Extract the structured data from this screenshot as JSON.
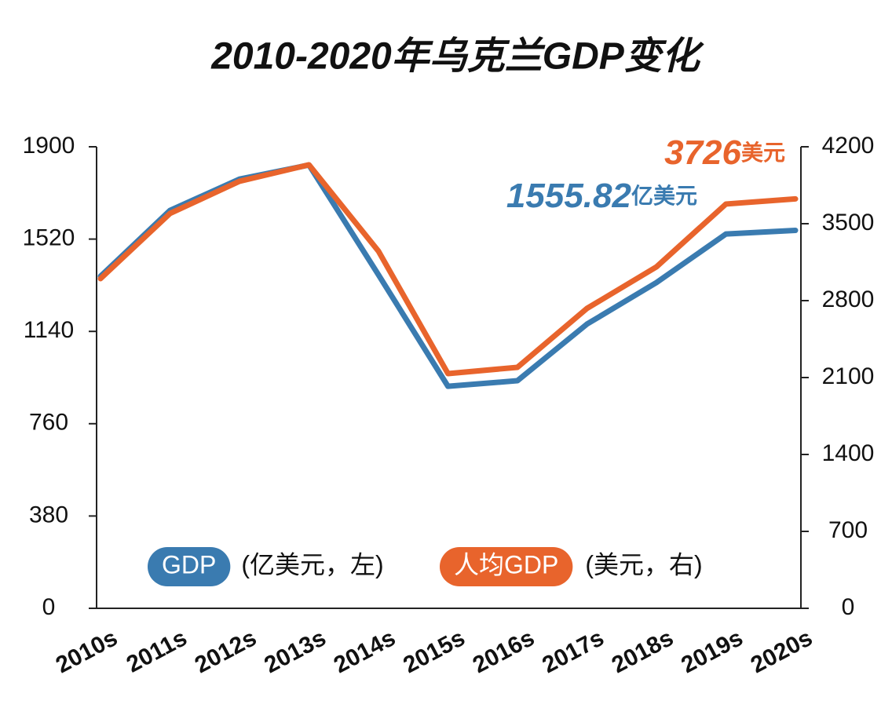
{
  "chart_data": {
    "type": "line",
    "title": "2010-2020年乌克兰GDP变化",
    "categories": [
      "2010s",
      "2011s",
      "2012s",
      "2013s",
      "2014s",
      "2015s",
      "2016s",
      "2017s",
      "2018s",
      "2019s",
      "2020s"
    ],
    "series": [
      {
        "name": "GDP",
        "unit_label": "(亿美元，左)",
        "color": "#3a7bb0",
        "values": [
          1367,
          1638,
          1767,
          1825,
          1373,
          914,
          937,
          1170,
          1341,
          1541,
          1555.82
        ]
      },
      {
        "name": "人均GDP",
        "unit_label": "(美元，右)",
        "color": "#e8642c",
        "axis": "y2",
        "values": [
          3000,
          3593,
          3886,
          4036,
          3250,
          2136,
          2193,
          2729,
          3107,
          3679,
          3726
        ]
      }
    ],
    "ylim": [
      0,
      1900
    ],
    "yticks": [
      0,
      380,
      760,
      1140,
      1520,
      1900
    ],
    "y2lim": [
      0,
      4200
    ],
    "y2ticks": [
      0,
      700,
      1400,
      2100,
      2800,
      3500,
      4200
    ],
    "annotations": [
      {
        "text": "3726",
        "suffix": "美元",
        "color": "#e8642c"
      },
      {
        "text": "1555.82",
        "suffix": "亿美元",
        "color": "#3a7bb0"
      }
    ]
  }
}
